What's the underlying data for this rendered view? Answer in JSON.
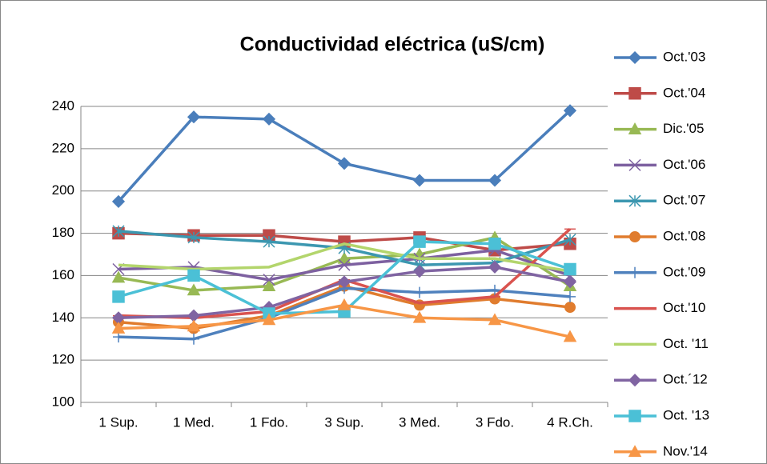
{
  "chart_data": {
    "type": "line",
    "title": "Conductividad eléctrica  (uS/cm)",
    "categories": [
      "1 Sup.",
      "1 Med.",
      "1 Fdo.",
      "3 Sup.",
      "3 Med.",
      "3 Fdo.",
      "4 R.Ch."
    ],
    "ylim": [
      100,
      240
    ],
    "yticks": [
      100,
      120,
      140,
      160,
      180,
      200,
      220,
      240
    ],
    "grid": true,
    "legend": "right",
    "series": [
      {
        "name": "Oct.'03",
        "color": "#4a7ebb",
        "marker": "diamond",
        "values": [
          195,
          235,
          234,
          213,
          205,
          205,
          238
        ]
      },
      {
        "name": "Oct.'04",
        "color": "#be4b48",
        "marker": "square",
        "values": [
          180,
          179,
          179,
          176,
          178,
          172,
          175
        ]
      },
      {
        "name": "Dic.'05",
        "color": "#98b954",
        "marker": "triangle",
        "values": [
          159,
          153,
          155,
          168,
          170,
          178,
          155
        ]
      },
      {
        "name": "Oct.'06",
        "color": "#7d60a0",
        "marker": "x",
        "values": [
          163,
          164,
          158,
          165,
          168,
          172,
          160
        ]
      },
      {
        "name": "Oct.'07",
        "color": "#3c97b0",
        "marker": "star",
        "values": [
          181,
          178,
          176,
          173,
          165,
          166,
          177
        ]
      },
      {
        "name": "Oct.'08",
        "color": "#e07c2e",
        "marker": "circle",
        "values": [
          138,
          135,
          141,
          155,
          146,
          149,
          145
        ]
      },
      {
        "name": "Oct.'09",
        "color": "#4f81bd",
        "marker": "plus",
        "values": [
          131,
          130,
          140,
          154,
          152,
          153,
          150
        ]
      },
      {
        "name": "Oct.'10",
        "color": "#d9534f",
        "marker": "dash",
        "values": [
          141,
          140,
          143,
          158,
          147,
          150,
          182
        ]
      },
      {
        "name": "Oct. '11",
        "color": "#b3d56c",
        "marker": "none",
        "values": [
          165,
          163,
          164,
          175,
          168,
          168,
          162
        ]
      },
      {
        "name": "Oct.´12",
        "color": "#8064a2",
        "marker": "diamond",
        "values": [
          140,
          141,
          145,
          157,
          162,
          164,
          157
        ]
      },
      {
        "name": "Oct. '13",
        "color": "#4bc0d6",
        "marker": "square",
        "values": [
          150,
          160,
          142,
          143,
          176,
          175,
          163
        ]
      },
      {
        "name": "Nov.'14",
        "color": "#f79646",
        "marker": "triangle",
        "values": [
          135,
          136,
          139,
          146,
          140,
          139,
          131
        ]
      }
    ]
  }
}
